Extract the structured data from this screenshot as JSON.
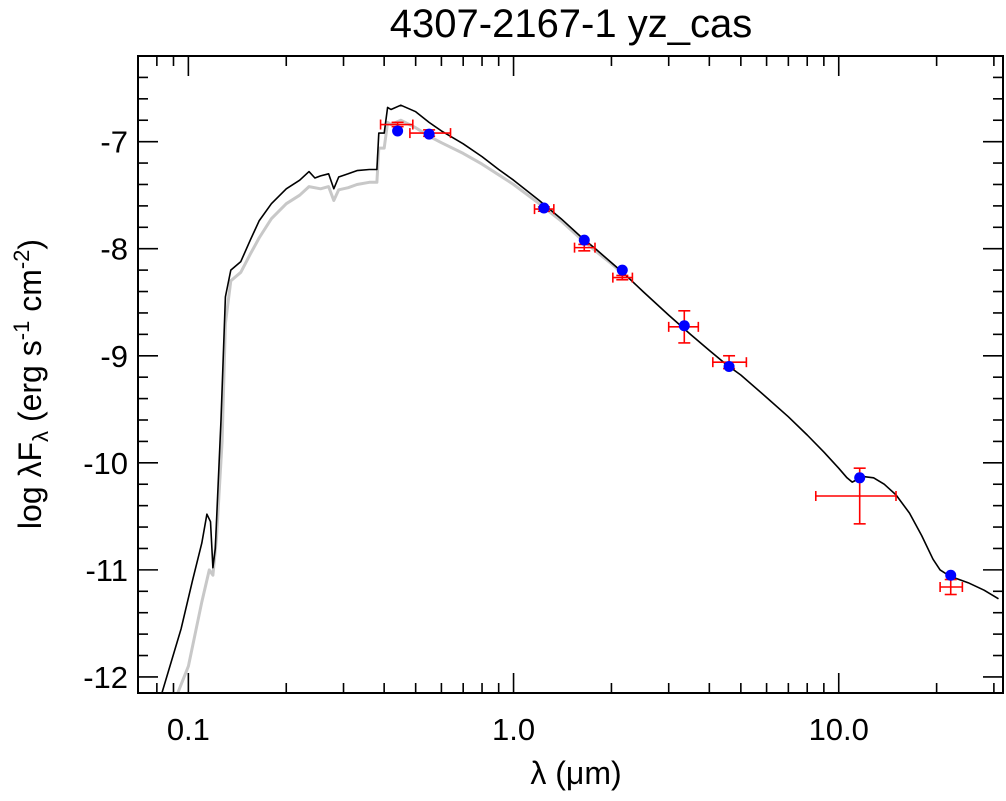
{
  "chart_data": {
    "type": "scatter",
    "title": "4307-2167-1   yz_cas",
    "xlabel": "λ (μm)",
    "ylabel_parts": {
      "base": "log λF",
      "sub": "λ",
      "paren_open": " (erg s",
      "exp1": "-1",
      "mid": " cm",
      "exp2": "-2",
      "paren_close": ")"
    },
    "x_scale": "log",
    "xlim": [
      0.07,
      32
    ],
    "ylim": [
      -12.15,
      -6.2
    ],
    "x_ticks": [
      0.1,
      1.0,
      10.0
    ],
    "x_tick_labels": [
      "0.1",
      "1.0",
      "10.0"
    ],
    "y_ticks": [
      -7,
      -8,
      -9,
      -10,
      -11,
      -12
    ],
    "y_tick_labels": [
      "-7",
      "-8",
      "-9",
      "-10",
      "-11",
      "-12"
    ],
    "grid": false,
    "legend": "none",
    "colors": {
      "model": "#000000",
      "model_unreddened": "#c8c8c8",
      "observed": "#ff0000",
      "synthetic": "#0000ff"
    },
    "series": [
      {
        "role": "model",
        "points": [
          [
            0.082,
            -12.2
          ],
          [
            0.095,
            -11.55
          ],
          [
            0.103,
            -11.1
          ],
          [
            0.11,
            -10.75
          ],
          [
            0.114,
            -10.48
          ],
          [
            0.117,
            -10.55
          ],
          [
            0.119,
            -10.98
          ],
          [
            0.121,
            -10.8
          ],
          [
            0.126,
            -9.6
          ],
          [
            0.13,
            -8.45
          ],
          [
            0.135,
            -8.2
          ],
          [
            0.145,
            -8.12
          ],
          [
            0.155,
            -7.92
          ],
          [
            0.165,
            -7.74
          ],
          [
            0.18,
            -7.58
          ],
          [
            0.2,
            -7.44
          ],
          [
            0.22,
            -7.36
          ],
          [
            0.235,
            -7.28
          ],
          [
            0.245,
            -7.34
          ],
          [
            0.255,
            -7.32
          ],
          [
            0.27,
            -7.3
          ],
          [
            0.28,
            -7.44
          ],
          [
            0.29,
            -7.33
          ],
          [
            0.31,
            -7.3
          ],
          [
            0.33,
            -7.27
          ],
          [
            0.36,
            -7.26
          ],
          [
            0.38,
            -7.26
          ],
          [
            0.385,
            -6.92
          ],
          [
            0.4,
            -6.92
          ],
          [
            0.41,
            -6.68
          ],
          [
            0.42,
            -6.7
          ],
          [
            0.45,
            -6.66
          ],
          [
            0.5,
            -6.72
          ],
          [
            0.55,
            -6.82
          ],
          [
            0.6,
            -6.9
          ],
          [
            0.7,
            -7.02
          ],
          [
            0.8,
            -7.14
          ],
          [
            0.9,
            -7.26
          ],
          [
            1.0,
            -7.36
          ],
          [
            1.2,
            -7.55
          ],
          [
            1.4,
            -7.72
          ],
          [
            1.6,
            -7.88
          ],
          [
            1.8,
            -8.01
          ],
          [
            2.0,
            -8.13
          ],
          [
            2.2,
            -8.24
          ],
          [
            2.5,
            -8.4
          ],
          [
            3.0,
            -8.62
          ],
          [
            3.5,
            -8.8
          ],
          [
            4.0,
            -8.95
          ],
          [
            4.5,
            -9.08
          ],
          [
            5.0,
            -9.18
          ],
          [
            6.0,
            -9.39
          ],
          [
            7.0,
            -9.57
          ],
          [
            8.0,
            -9.74
          ],
          [
            9.0,
            -9.9
          ],
          [
            10.0,
            -10.05
          ],
          [
            10.6,
            -10.14
          ],
          [
            11.0,
            -10.18
          ],
          [
            11.5,
            -10.15
          ],
          [
            12.0,
            -10.13
          ],
          [
            12.8,
            -10.14
          ],
          [
            13.8,
            -10.2
          ],
          [
            15.0,
            -10.3
          ],
          [
            16.5,
            -10.47
          ],
          [
            18.0,
            -10.68
          ],
          [
            19.5,
            -10.9
          ],
          [
            20.5,
            -11.0
          ],
          [
            22.0,
            -11.06
          ],
          [
            25.0,
            -11.12
          ],
          [
            28.0,
            -11.19
          ],
          [
            31.0,
            -11.27
          ]
        ]
      },
      {
        "role": "model_unreddened",
        "points": [
          [
            0.09,
            -12.25
          ],
          [
            0.1,
            -11.9
          ],
          [
            0.11,
            -11.3
          ],
          [
            0.116,
            -11.0
          ],
          [
            0.119,
            -11.05
          ],
          [
            0.122,
            -10.7
          ],
          [
            0.127,
            -9.8
          ],
          [
            0.13,
            -8.7
          ],
          [
            0.135,
            -8.3
          ],
          [
            0.145,
            -8.22
          ],
          [
            0.155,
            -8.05
          ],
          [
            0.165,
            -7.9
          ],
          [
            0.18,
            -7.72
          ],
          [
            0.2,
            -7.58
          ],
          [
            0.22,
            -7.5
          ],
          [
            0.235,
            -7.42
          ],
          [
            0.255,
            -7.44
          ],
          [
            0.27,
            -7.42
          ],
          [
            0.28,
            -7.55
          ],
          [
            0.29,
            -7.45
          ],
          [
            0.31,
            -7.43
          ],
          [
            0.33,
            -7.4
          ],
          [
            0.36,
            -7.38
          ],
          [
            0.38,
            -7.38
          ],
          [
            0.385,
            -7.06
          ],
          [
            0.4,
            -7.06
          ],
          [
            0.41,
            -6.82
          ],
          [
            0.42,
            -6.84
          ],
          [
            0.45,
            -6.8
          ],
          [
            0.5,
            -6.87
          ],
          [
            0.55,
            -6.95
          ],
          [
            0.6,
            -7.01
          ],
          [
            0.7,
            -7.11
          ],
          [
            0.8,
            -7.21
          ],
          [
            0.9,
            -7.31
          ],
          [
            1.0,
            -7.4
          ],
          [
            1.2,
            -7.58
          ],
          [
            1.4,
            -7.74
          ],
          [
            1.6,
            -7.9
          ],
          [
            1.8,
            -8.03
          ],
          [
            2.0,
            -8.14
          ],
          [
            2.2,
            -8.25
          ]
        ]
      },
      {
        "role": "observed",
        "points": [
          {
            "x": 0.44,
            "y": -6.84,
            "xlo": 0.39,
            "xhi": 0.49,
            "ylo": -6.86,
            "yhi": -6.82
          },
          {
            "x": 0.55,
            "y": -6.92,
            "xlo": 0.48,
            "xhi": 0.64,
            "ylo": -6.95,
            "yhi": -6.89
          },
          {
            "x": 1.24,
            "y": -7.63,
            "xlo": 1.16,
            "xhi": 1.33,
            "ylo": -7.65,
            "yhi": -7.61
          },
          {
            "x": 1.65,
            "y": -7.99,
            "xlo": 1.54,
            "xhi": 1.78,
            "ylo": -8.02,
            "yhi": -7.96
          },
          {
            "x": 2.16,
            "y": -8.27,
            "xlo": 2.02,
            "xhi": 2.32,
            "ylo": -8.29,
            "yhi": -8.25
          },
          {
            "x": 3.35,
            "y": -8.73,
            "xlo": 3.0,
            "xhi": 3.7,
            "ylo": -8.88,
            "yhi": -8.58
          },
          {
            "x": 4.6,
            "y": -9.06,
            "xlo": 4.1,
            "xhi": 5.2,
            "ylo": -9.12,
            "yhi": -9.0
          },
          {
            "x": 11.6,
            "y": -10.31,
            "xlo": 8.5,
            "xhi": 15.0,
            "ylo": -10.57,
            "yhi": -10.05
          },
          {
            "x": 22.1,
            "y": -11.16,
            "xlo": 20.5,
            "xhi": 24.0,
            "ylo": -11.23,
            "yhi": -11.09
          }
        ]
      },
      {
        "role": "synthetic",
        "points": [
          [
            0.44,
            -6.9
          ],
          [
            0.55,
            -6.93
          ],
          [
            1.24,
            -7.62
          ],
          [
            1.65,
            -7.92
          ],
          [
            2.16,
            -8.2
          ],
          [
            3.35,
            -8.72
          ],
          [
            4.6,
            -9.1
          ],
          [
            11.6,
            -10.14
          ],
          [
            22.1,
            -11.05
          ]
        ]
      }
    ]
  }
}
